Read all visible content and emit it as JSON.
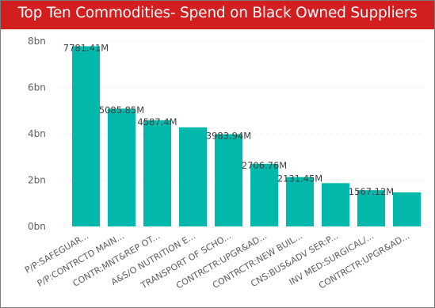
{
  "title": "Top Ten Commodities- Spend on Black Owned Suppliers",
  "colors": {
    "bar": "#01b8aa",
    "title_bg": "#d21e1e",
    "title_text": "#ffffff"
  },
  "chart_data": {
    "type": "bar",
    "title": "Top Ten Commodities- Spend on Black Owned Suppliers",
    "xlabel": "",
    "ylabel": "",
    "ylim": [
      0,
      8
    ],
    "yticks": [
      0,
      2,
      4,
      6,
      8
    ],
    "ytick_labels": [
      "0bn",
      "2bn",
      "4bn",
      "6bn",
      "8bn"
    ],
    "grid": true,
    "categories": [
      "P/P:SAFEGUAR...",
      "P/P:CONTRCTD MAIN...",
      "CONTR:MNT&REP OT...",
      "A&S/O NUTRITION E...",
      "TRANSPORT OF SCHO...",
      "CONTRCTR:UPGR&AD...",
      "CONTRCTR:NEW BUIL...",
      "CNS:BUS&ADV SER:P...",
      "INV MED:SURGICAL/...",
      "CONTRCTR:UPGR&AD..."
    ],
    "values": [
      7.78141,
      5.08585,
      4.5874,
      4.28,
      3.98394,
      2.70676,
      2.13145,
      1.87,
      1.56712,
      1.47
    ],
    "data_labels": [
      "7781.41M",
      "5085.85M",
      "4587.4M",
      "",
      "3983.94M",
      "2706.76M",
      "2131.45M",
      "",
      "1567.12M",
      ""
    ]
  }
}
